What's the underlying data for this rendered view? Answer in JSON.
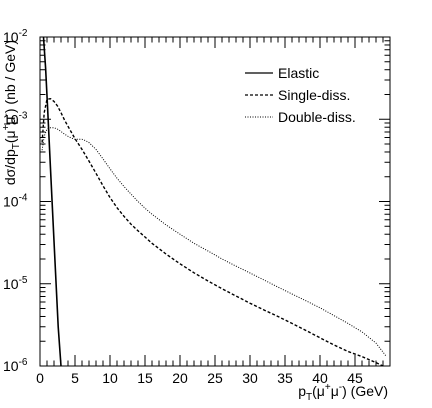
{
  "chart_data": {
    "type": "line",
    "title": "",
    "xlabel": {
      "base": "p",
      "sub": "T",
      "open": "(μ",
      "sup1": "+",
      "mid": "μ",
      "sup2": "-",
      "close": ") (GeV)"
    },
    "ylabel": {
      "pre": "dσ/dp",
      "sub": "T",
      "open": "(μ",
      "sup1": "+",
      "mid": "μ",
      "sup2": "-",
      "close": ") (nb / GeV)"
    },
    "xlim": [
      0,
      50
    ],
    "ylim": [
      1e-06,
      0.01
    ],
    "yscale": "log",
    "grid": false,
    "legend_position": "top-right",
    "x_ticks": [
      {
        "v": 0,
        "label": "0"
      },
      {
        "v": 5,
        "label": "5"
      },
      {
        "v": 10,
        "label": "10"
      },
      {
        "v": 15,
        "label": "15"
      },
      {
        "v": 20,
        "label": "20"
      },
      {
        "v": 25,
        "label": "25"
      },
      {
        "v": 30,
        "label": "30"
      },
      {
        "v": 35,
        "label": "35"
      },
      {
        "v": 40,
        "label": "40"
      },
      {
        "v": 45,
        "label": "45"
      }
    ],
    "y_ticks": [
      {
        "v": 1e-06,
        "base": "10",
        "exp": "-6"
      },
      {
        "v": 1e-05,
        "base": "10",
        "exp": "-5"
      },
      {
        "v": 0.0001,
        "base": "10",
        "exp": "-4"
      },
      {
        "v": 0.001,
        "base": "10",
        "exp": "-3"
      },
      {
        "v": 0.01,
        "base": "10",
        "exp": "-2"
      }
    ],
    "series": [
      {
        "name": "Elastic",
        "style": "solid",
        "x": [
          0.5,
          0.8,
          1.1,
          1.5,
          2.0,
          2.6,
          3.0
        ],
        "y": [
          0.01,
          0.0042,
          0.0013,
          0.00025,
          3.3e-05,
          3e-06,
          1e-06
        ]
      },
      {
        "name": "Single-diss.",
        "style": "dashed",
        "x": [
          0.3,
          0.6,
          1.0,
          1.5,
          2.0,
          2.5,
          3.0,
          3.5,
          4,
          5,
          6,
          7,
          8,
          9,
          10,
          11,
          12,
          13,
          14,
          15,
          16,
          18,
          20,
          22,
          24,
          26,
          28,
          30,
          32,
          34,
          36,
          38,
          40,
          42,
          44,
          46,
          48,
          49
        ],
        "y": [
          0.00052,
          0.0012,
          0.00175,
          0.00178,
          0.00165,
          0.00145,
          0.0012,
          0.00098,
          0.00082,
          0.00058,
          0.00043,
          0.00031,
          0.00022,
          0.000155,
          0.000112,
          8.4e-05,
          6.6e-05,
          5.3e-05,
          4.4e-05,
          3.7e-05,
          3.1e-05,
          2.3e-05,
          1.75e-05,
          1.36e-05,
          1.08e-05,
          8.7e-06,
          7.1e-06,
          5.8e-06,
          4.8e-06,
          4e-06,
          3.3e-06,
          2.7e-06,
          2.2e-06,
          1.8e-06,
          1.5e-06,
          1.3e-06,
          1.1e-06,
          1e-06
        ]
      },
      {
        "name": "Double-diss.",
        "style": "dotted",
        "x": [
          0.3,
          0.6,
          1.0,
          1.5,
          2.0,
          2.5,
          3.0,
          3.5,
          4.0,
          4.5,
          5.0,
          5.5,
          6.0,
          6.5,
          7,
          8,
          9,
          10,
          11,
          12,
          13,
          14,
          15,
          16,
          18,
          20,
          22,
          24,
          26,
          28,
          30,
          32,
          34,
          36,
          38,
          40,
          42,
          44,
          46,
          48,
          49.5
        ],
        "y": [
          0.00042,
          0.00062,
          0.00076,
          0.00079,
          0.00079,
          0.00076,
          0.00071,
          0.00066,
          0.00062,
          0.00059,
          0.00057,
          0.00057,
          0.00057,
          0.00055,
          0.00052,
          0.00043,
          0.00033,
          0.00025,
          0.000192,
          0.000152,
          0.000123,
          0.0001,
          8.3e-05,
          7e-05,
          5.2e-05,
          4e-05,
          3.1e-05,
          2.5e-05,
          2e-05,
          1.64e-05,
          1.35e-05,
          1.11e-05,
          9.1e-06,
          7.5e-06,
          6.2e-06,
          5.1e-06,
          4.1e-06,
          3.3e-06,
          2.6e-06,
          1.9e-06,
          1.3e-06
        ]
      }
    ]
  }
}
